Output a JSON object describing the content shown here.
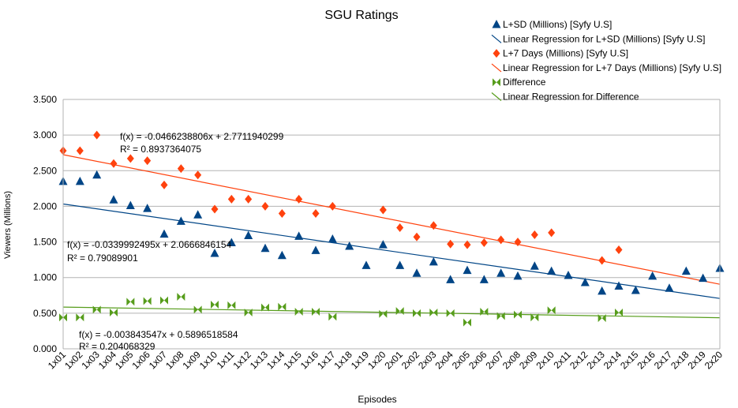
{
  "chart_data": {
    "type": "scatter",
    "title": "SGU Ratings",
    "xlabel": "Episodes",
    "ylabel": "Viewers (Millions)",
    "ylim": [
      0,
      3.5
    ],
    "yticks": [
      "0.000",
      "0.500",
      "1.000",
      "1.500",
      "2.000",
      "2.500",
      "3.000",
      "3.500"
    ],
    "grid": true,
    "legend_position": "top-right",
    "categories": [
      "1x01",
      "1x02",
      "1x03",
      "1x04",
      "1x05",
      "1x06",
      "1x07",
      "1x08",
      "1x09",
      "1x10",
      "1x11",
      "1x12",
      "1x13",
      "1x14",
      "1x15",
      "1x16",
      "1x17",
      "1x18",
      "1x19",
      "1x20",
      "2x01",
      "2x02",
      "2x03",
      "2x04",
      "2x05",
      "2x06",
      "2x07",
      "2x08",
      "2x09",
      "2x10",
      "2x11",
      "2x12",
      "2x13",
      "2x14",
      "2x15",
      "2x16",
      "2x17",
      "2x18",
      "2x19",
      "2x20"
    ],
    "series": [
      {
        "name": "L+SD (Millions) [Syfy U.S]",
        "color": "#004586",
        "marker": "triangle-up",
        "values": [
          2.35,
          2.35,
          2.44,
          2.09,
          2.01,
          1.97,
          1.61,
          1.79,
          1.88,
          1.34,
          1.49,
          1.59,
          1.41,
          1.31,
          1.58,
          1.38,
          1.54,
          1.44,
          1.17,
          1.46,
          1.17,
          1.06,
          1.22,
          0.97,
          1.1,
          0.97,
          1.06,
          1.02,
          1.16,
          1.09,
          1.03,
          0.93,
          0.81,
          0.88,
          0.82,
          1.02,
          0.85,
          1.09,
          0.99,
          1.13
        ]
      },
      {
        "name": "L+7 Days (Millions) [Syfy U.S]",
        "color": "#ff420e",
        "marker": "diamond",
        "values": [
          2.78,
          2.78,
          3.0,
          2.6,
          2.67,
          2.64,
          2.3,
          2.53,
          2.44,
          1.96,
          2.1,
          2.1,
          2.0,
          1.9,
          2.1,
          1.9,
          2.0,
          null,
          null,
          1.95,
          1.7,
          1.57,
          1.73,
          1.47,
          1.46,
          1.49,
          1.53,
          1.5,
          1.6,
          1.63,
          null,
          null,
          1.24,
          1.39,
          null,
          null,
          null,
          null,
          null,
          null
        ]
      },
      {
        "name": "Difference",
        "color": "#579d1c",
        "marker": "bowtie",
        "values": [
          0.44,
          0.44,
          0.55,
          0.51,
          0.66,
          0.67,
          0.68,
          0.73,
          0.55,
          0.62,
          0.61,
          0.51,
          0.58,
          0.59,
          0.52,
          0.52,
          0.45,
          null,
          null,
          0.49,
          0.53,
          0.5,
          0.51,
          0.5,
          0.37,
          0.52,
          0.46,
          0.48,
          0.44,
          0.54,
          null,
          null,
          0.43,
          0.51,
          null,
          null,
          null,
          null,
          null,
          null
        ]
      }
    ],
    "regressions": [
      {
        "name": "Linear Regression for L+SD (Millions) [Syfy U.S]",
        "color": "#004586",
        "slope": -0.0339992495,
        "intercept": 2.0666846154,
        "equation": "f(x) = -0.0339992495x + 2.0666846154",
        "r2": "R² = 0.79089901"
      },
      {
        "name": "Linear Regression for L+7 Days (Millions) [Syfy U.S]",
        "color": "#ff420e",
        "slope": -0.0466238806,
        "intercept": 2.7711940299,
        "equation": "f(x) = -0.0466238806x + 2.7711940299",
        "r2": "R² = 0.8937364075"
      },
      {
        "name": "Linear Regression for Difference",
        "color": "#579d1c",
        "slope": -0.003843547,
        "intercept": 0.5896518584,
        "equation": "f(x) = -0.003843547x + 0.5896518584",
        "r2": "R² = 0.204068329"
      }
    ],
    "legend": [
      "L+SD (Millions) [Syfy U.S]",
      "Linear Regression for L+SD (Millions) [Syfy U.S]",
      "L+7 Days (Millions) [Syfy U.S]",
      "Linear Regression for L+7 Days (Millions) [Syfy U.S]",
      "Difference",
      "Linear Regression for Difference"
    ]
  }
}
